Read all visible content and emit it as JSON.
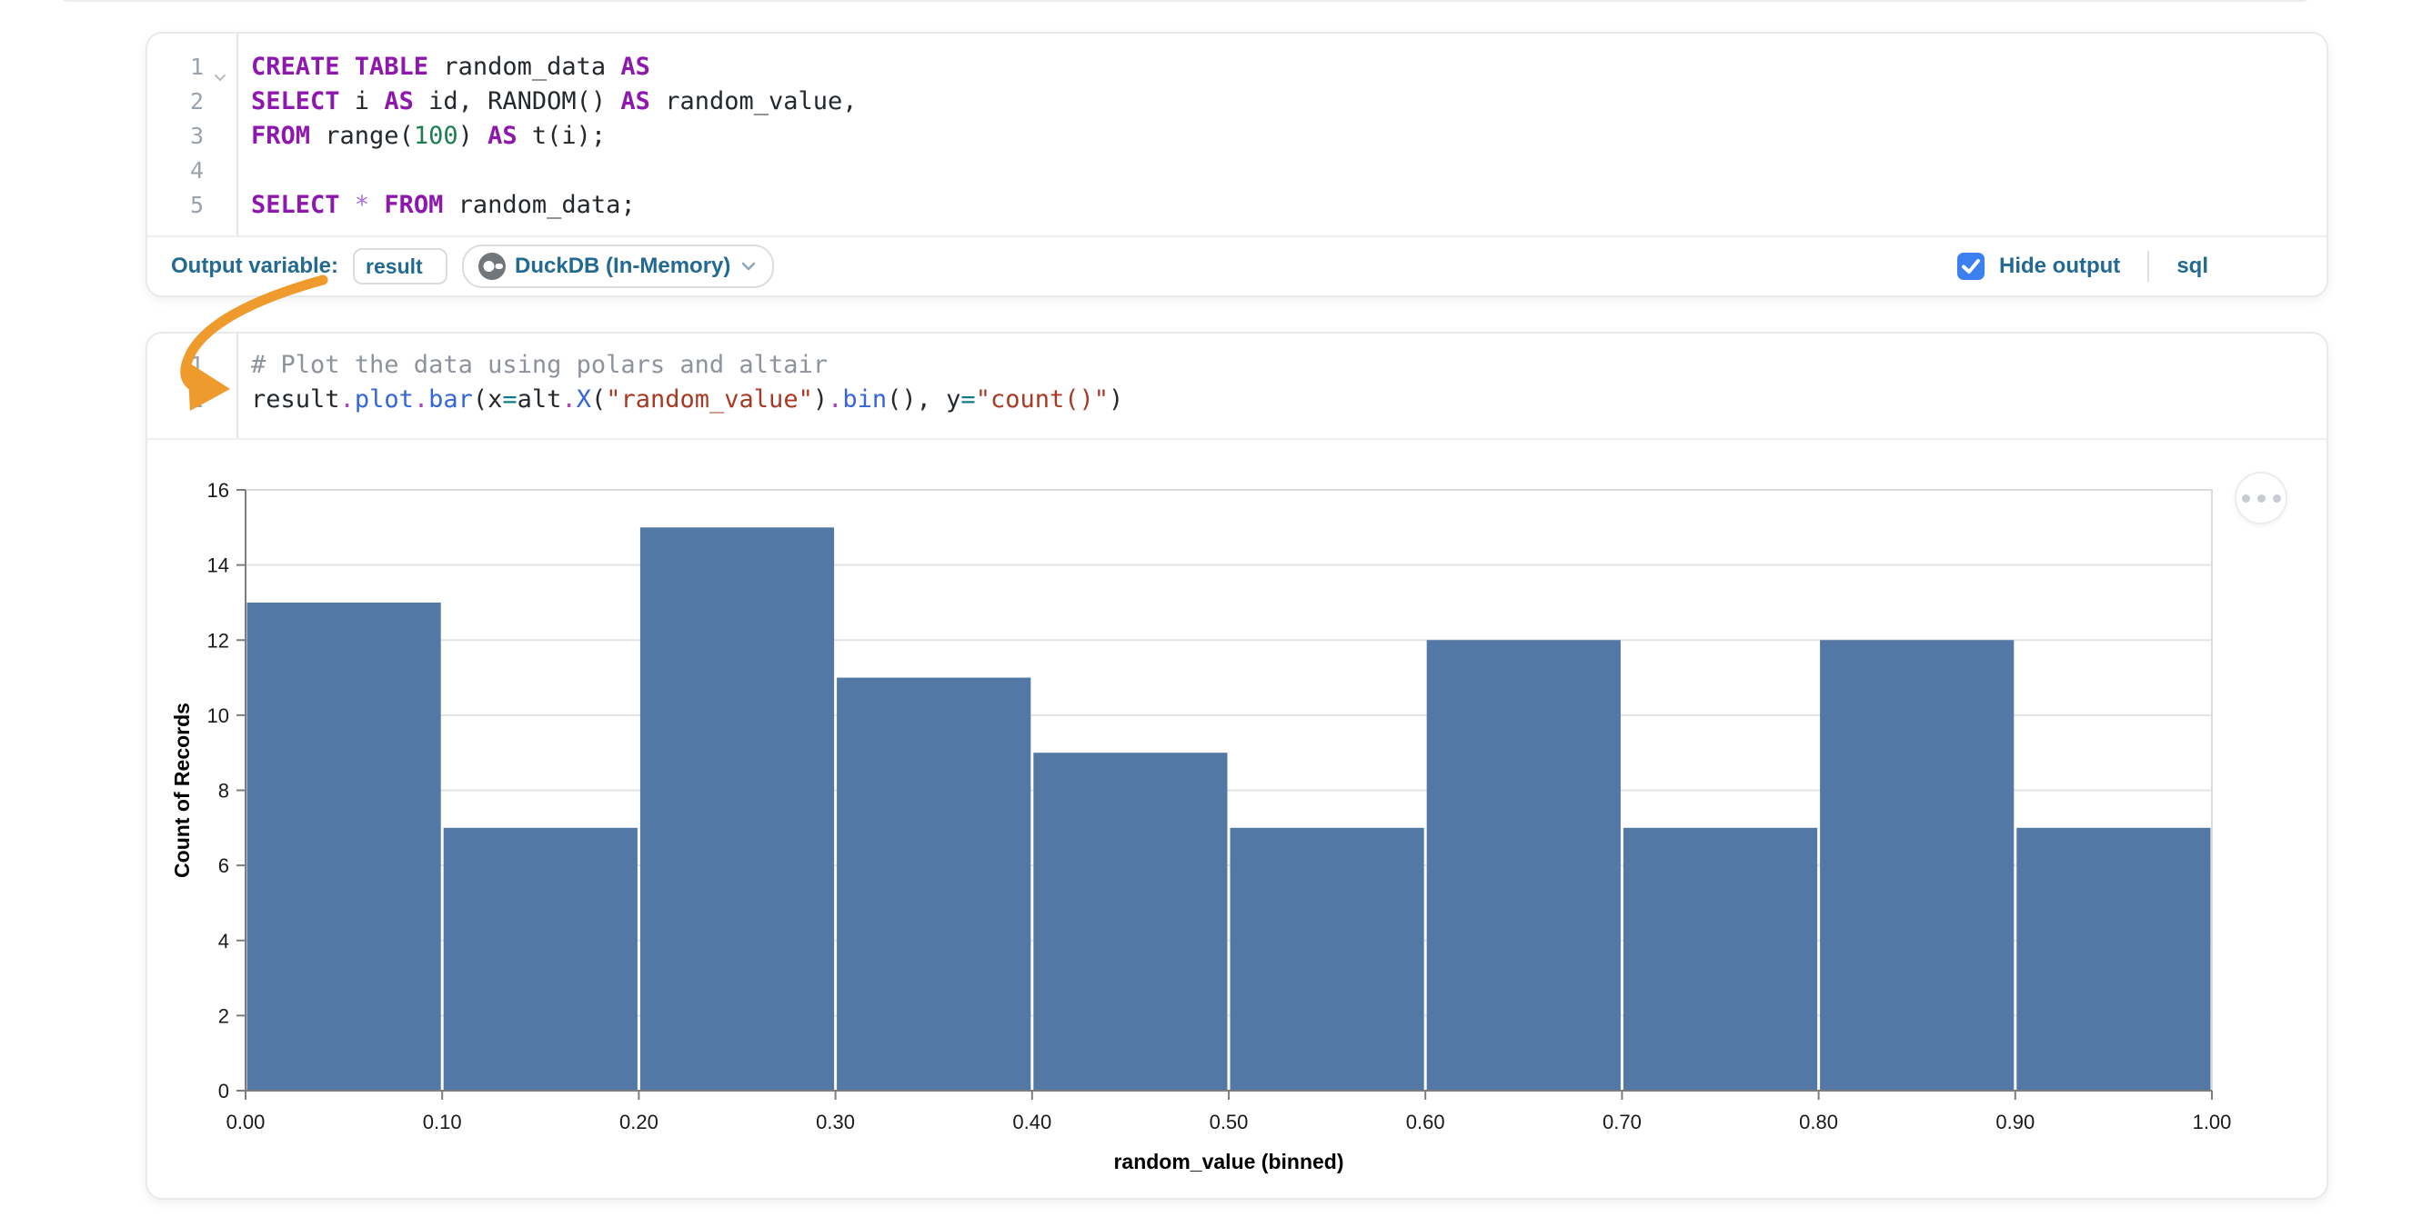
{
  "sql_cell": {
    "lines": [
      {
        "num": "1",
        "fold": true,
        "tokens": [
          [
            "kw",
            "CREATE TABLE"
          ],
          [
            "pl",
            " random_data "
          ],
          [
            "kw",
            "AS"
          ]
        ]
      },
      {
        "num": "2",
        "tokens": [
          [
            "kw",
            "SELECT"
          ],
          [
            "pl",
            " i "
          ],
          [
            "kw",
            "AS"
          ],
          [
            "pl",
            " id, RANDOM() "
          ],
          [
            "kw",
            "AS"
          ],
          [
            "pl",
            " random_value,"
          ]
        ]
      },
      {
        "num": "3",
        "tokens": [
          [
            "kw",
            "FROM"
          ],
          [
            "pl",
            " range("
          ],
          [
            "num",
            "100"
          ],
          [
            "pl",
            ") "
          ],
          [
            "kw",
            "AS"
          ],
          [
            "pl",
            " t(i);"
          ]
        ]
      },
      {
        "num": "4",
        "tokens": []
      },
      {
        "num": "5",
        "tokens": [
          [
            "kw",
            "SELECT"
          ],
          [
            "pl",
            " "
          ],
          [
            "star",
            "*"
          ],
          [
            "pl",
            " "
          ],
          [
            "kw",
            "FROM"
          ],
          [
            "pl",
            " random_data;"
          ]
        ]
      }
    ],
    "footer": {
      "output_variable_label": "Output variable:",
      "output_variable_value": "result",
      "engine_label": "DuckDB (In-Memory)",
      "hide_output_label": "Hide output",
      "hide_output_checked": true,
      "language_badge": "sql"
    }
  },
  "python_cell": {
    "lines": [
      {
        "num": "1",
        "tokens": [
          [
            "cm",
            "# Plot the data using polars and altair"
          ]
        ]
      },
      {
        "num": "2",
        "tokens": [
          [
            "pl",
            "result"
          ],
          [
            "dot",
            "."
          ],
          [
            "fn",
            "plot"
          ],
          [
            "dot",
            "."
          ],
          [
            "fn",
            "bar"
          ],
          [
            "pl",
            "(x"
          ],
          [
            "eq",
            "="
          ],
          [
            "pl",
            "alt"
          ],
          [
            "dot",
            "."
          ],
          [
            "fn",
            "X"
          ],
          [
            "pl",
            "("
          ],
          [
            "str",
            "\"random_value\""
          ],
          [
            "pl",
            ")"
          ],
          [
            "dot",
            "."
          ],
          [
            "fn",
            "bin"
          ],
          [
            "pl",
            "(), y"
          ],
          [
            "eq",
            "="
          ],
          [
            "str",
            "\"count()\""
          ],
          [
            "pl",
            ")"
          ]
        ]
      }
    ]
  },
  "chart_data": {
    "type": "bar",
    "subtype": "histogram",
    "title": "",
    "xlabel": "random_value (binned)",
    "ylabel": "Count of Records",
    "bin_edges": [
      0.0,
      0.1,
      0.2,
      0.3,
      0.4,
      0.5,
      0.6,
      0.7,
      0.8,
      0.9,
      1.0
    ],
    "values": [
      13,
      7,
      15,
      11,
      9,
      7,
      12,
      7,
      12,
      7
    ],
    "ylim": [
      0,
      16
    ],
    "y_ticks": [
      0,
      2,
      4,
      6,
      8,
      10,
      12,
      14,
      16
    ],
    "x_tick_labels": [
      "0.00",
      "0.10",
      "0.20",
      "0.30",
      "0.40",
      "0.50",
      "0.60",
      "0.70",
      "0.80",
      "0.90",
      "1.00"
    ],
    "bar_color": "#5478a6",
    "grid": true,
    "legend_position": "none"
  },
  "colors": {
    "accent_blue": "#236a92",
    "checkbox_blue": "#3c7ff1",
    "annotation_orange": "#ef9a2d"
  }
}
